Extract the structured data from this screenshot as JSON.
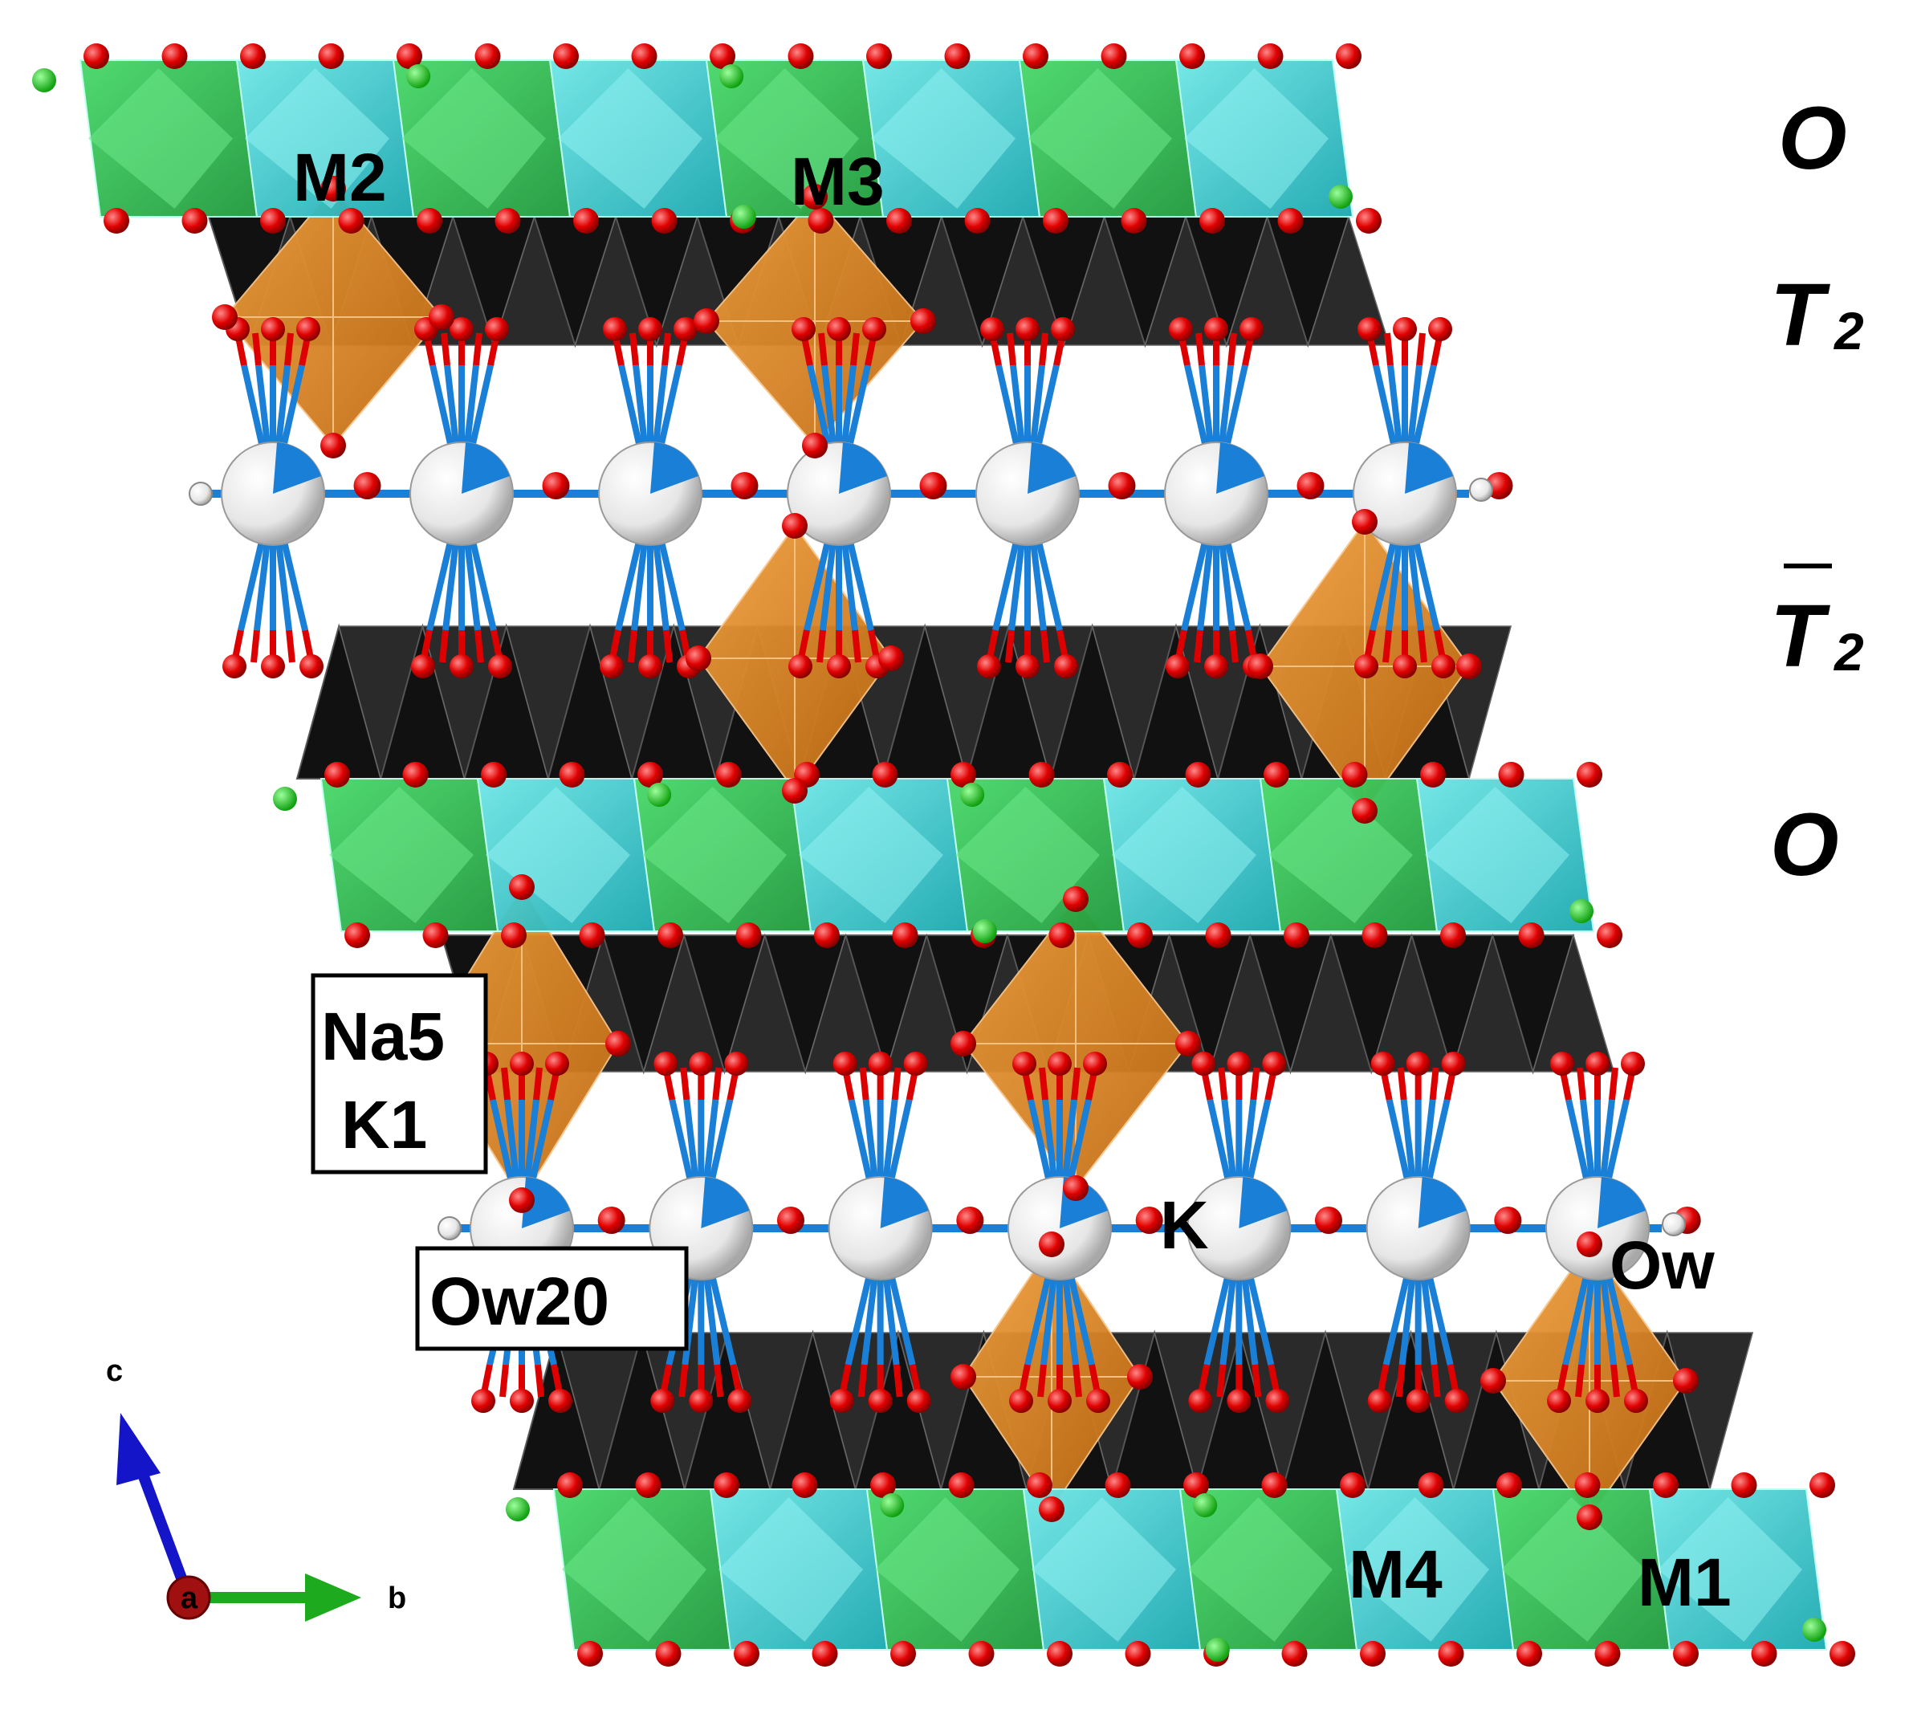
{
  "layers": {
    "o_top": "O",
    "t2": "T",
    "t2_sub": "2",
    "t2bar": "T",
    "t2bar_sub": "2",
    "o_mid": "O"
  },
  "sites": {
    "m2": "M2",
    "m3": "M3",
    "m4": "M4",
    "m1": "M1",
    "na5": "Na5",
    "k1": "K1",
    "ow20": "Ow20",
    "k": "K",
    "ow": "Ow"
  },
  "axes": {
    "c": "c",
    "a": "a",
    "b": "b"
  },
  "colors": {
    "green_octahedra": "#2fc04f",
    "cyan_octahedra": "#2fc6c6",
    "orange_octahedra": "#d9801a",
    "tetrahedra": "#111111",
    "oxygen": "#e00000",
    "cation": "#f2f2f2",
    "bond": "#1a7fd6",
    "axis_c": "#1414c8",
    "axis_b": "#1eaa1e",
    "axis_a": "#a01010"
  }
}
